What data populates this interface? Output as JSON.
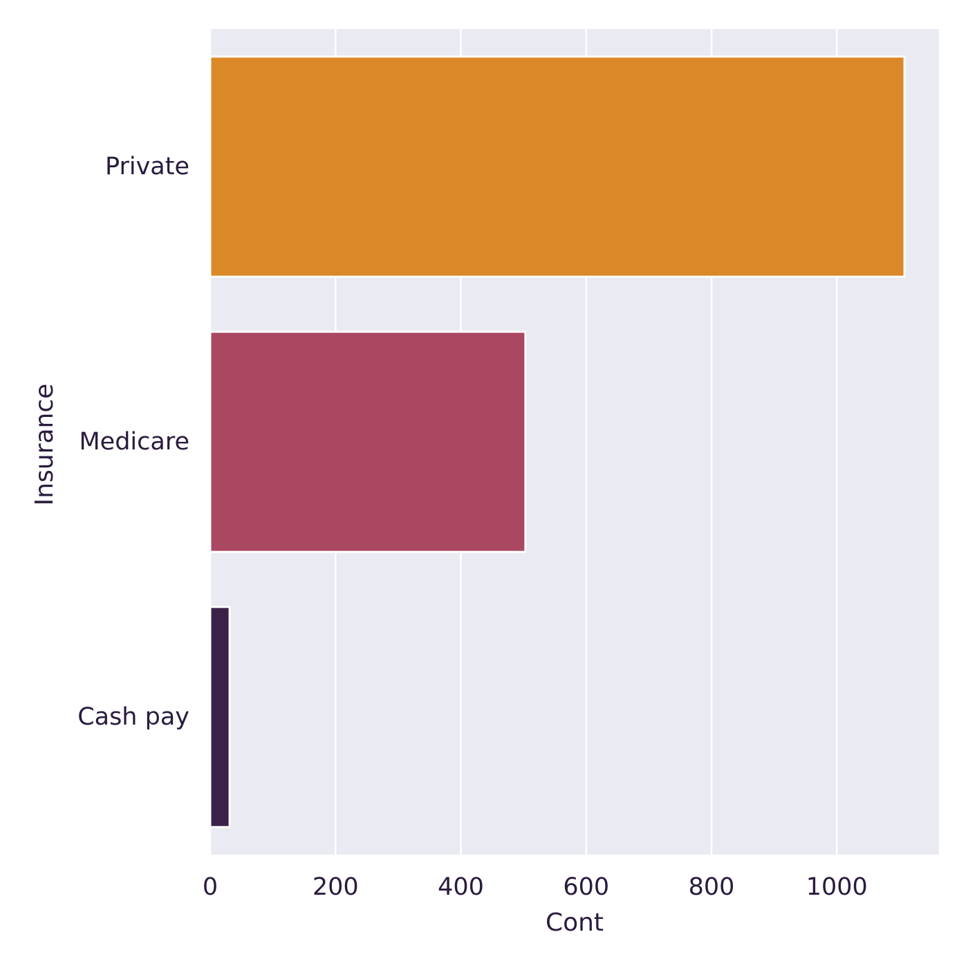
{
  "chart_data": {
    "type": "bar",
    "orientation": "horizontal",
    "categories": [
      "Private",
      "Medicare",
      "Cash pay"
    ],
    "values": [
      1108,
      503,
      31
    ],
    "colors": [
      "#db8828",
      "#aa4761",
      "#3b2147"
    ],
    "xlabel": "Cont",
    "ylabel": "Insurance",
    "xlim": [
      0,
      1163
    ],
    "xticks": [
      0,
      200,
      400,
      600,
      800,
      1000
    ],
    "grid": true,
    "background": "#eaeaf2",
    "grid_color": "#ffffff",
    "text_color": "#2a1b3d"
  }
}
